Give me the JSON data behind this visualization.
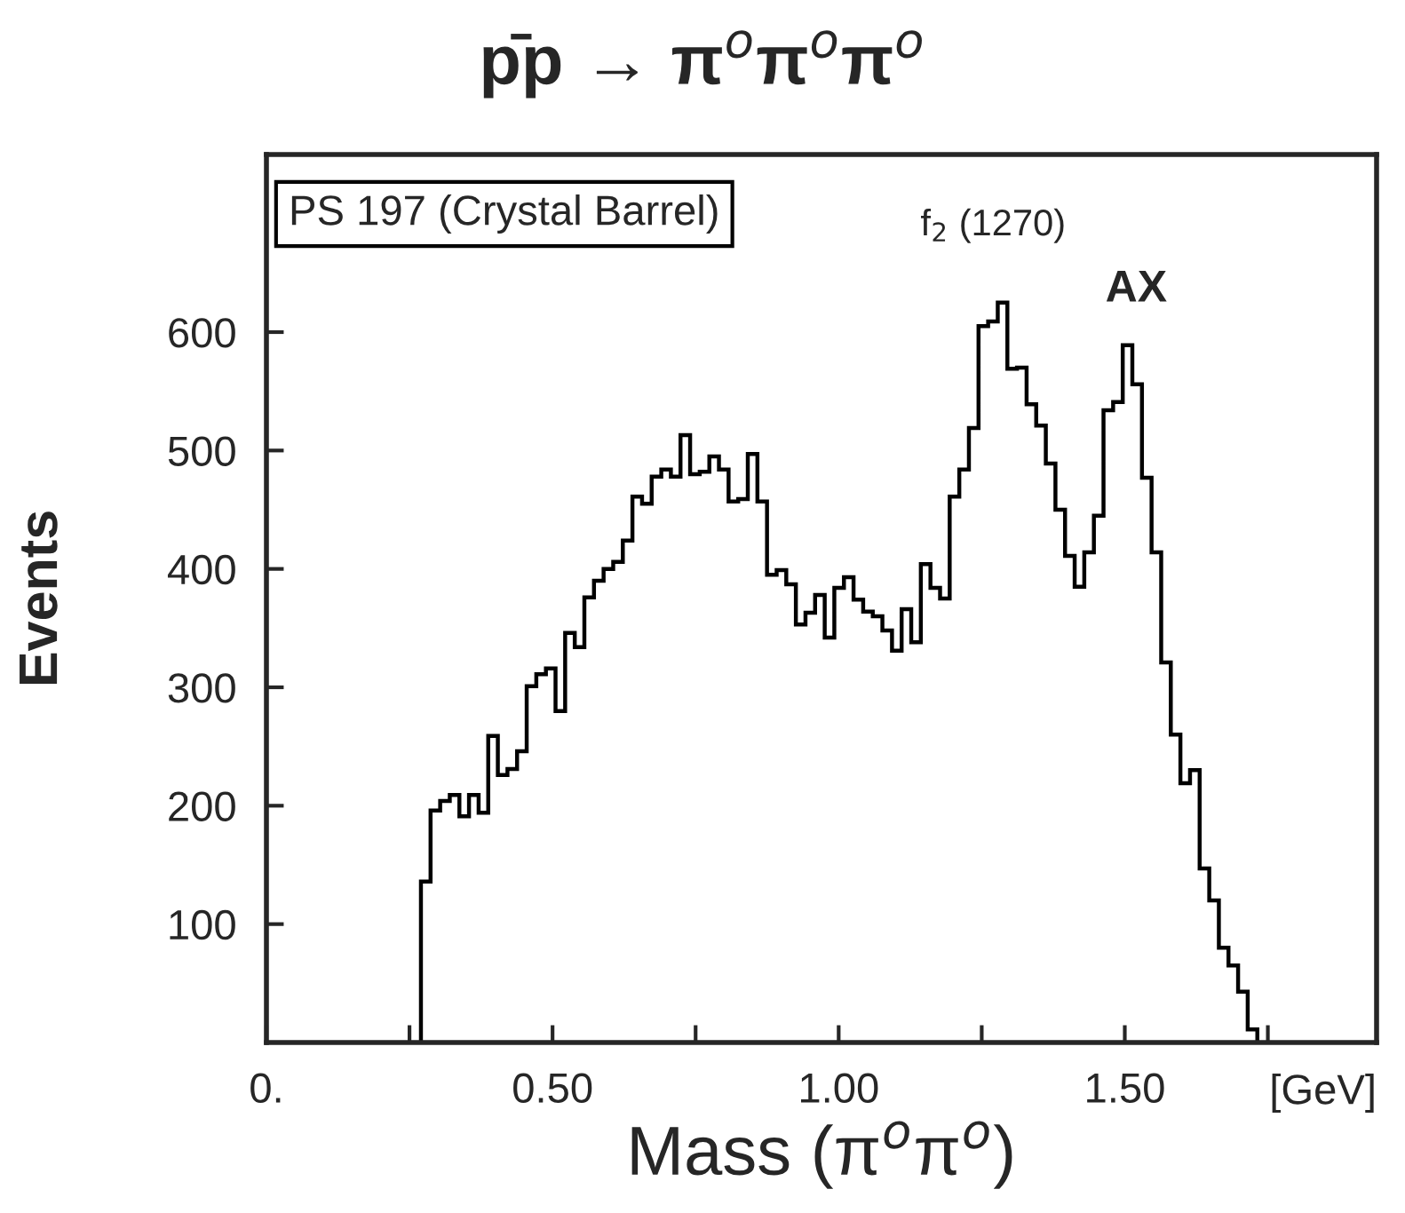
{
  "chart_data": {
    "type": "histogram",
    "title": "p̄p → π$^{o}$π$^{o}$π$^{o}$",
    "xlabel": "Mass (π$^{o}$π$^{o}$)",
    "ylabel": "Events",
    "color": "#000000",
    "bins": [
      0.27,
      0.2868,
      0.3036,
      0.3204,
      0.3372,
      0.354,
      0.3708,
      0.3876,
      0.4044,
      0.4212,
      0.438,
      0.4548,
      0.4716,
      0.4884,
      0.5052,
      0.522,
      0.5388,
      0.5556,
      0.5724,
      0.5892,
      0.606,
      0.6228,
      0.6396,
      0.6564,
      0.6732,
      0.69,
      0.7068,
      0.7236,
      0.7404,
      0.7572,
      0.774,
      0.7908,
      0.8076,
      0.8244,
      0.8412,
      0.858,
      0.8748,
      0.8916,
      0.9084,
      0.9252,
      0.942,
      0.9588,
      0.9756,
      0.9924,
      1.0092,
      1.026,
      1.0428,
      1.0596,
      1.0764,
      1.0932,
      1.11,
      1.1268,
      1.1436,
      1.1604,
      1.1772,
      1.194,
      1.2108,
      1.2276,
      1.2444,
      1.2612,
      1.278,
      1.2948,
      1.3116,
      1.3284,
      1.3452,
      1.362,
      1.3788,
      1.3956,
      1.4124,
      1.4292,
      1.446,
      1.4628,
      1.4796,
      1.4964,
      1.5132,
      1.53,
      1.5468,
      1.5636,
      1.5804,
      1.5972,
      1.614,
      1.6308,
      1.6476,
      1.6644,
      1.6812,
      1.698,
      1.7148,
      1.7316
    ],
    "values": [
      136,
      196,
      204,
      209,
      191,
      209,
      194,
      259,
      226,
      231,
      246,
      301,
      311,
      316,
      280,
      346,
      334,
      376,
      390,
      400,
      406,
      424,
      461,
      455,
      478,
      484,
      478,
      513,
      480,
      482,
      495,
      484,
      457,
      459,
      497,
      457,
      395,
      399,
      387,
      353,
      363,
      378,
      342,
      384,
      393,
      374,
      364,
      360,
      348,
      331,
      366,
      338,
      404,
      384,
      375,
      461,
      484,
      519,
      605,
      609,
      625,
      569,
      570,
      539,
      521,
      489,
      450,
      411,
      385,
      414,
      445,
      534,
      541,
      589,
      556,
      477,
      414,
      321,
      260,
      219,
      230,
      147,
      120,
      80,
      65,
      43,
      11
    ],
    "xlim": [
      0,
      1.94
    ],
    "ylim": [
      0,
      750
    ],
    "xticks": [
      {
        "value": 0,
        "label": "0."
      },
      {
        "value": 0.25,
        "label": null
      },
      {
        "value": 0.5,
        "label": "0.50"
      },
      {
        "value": 0.75,
        "label": null
      },
      {
        "value": 1.0,
        "label": "1.00"
      },
      {
        "value": 1.25,
        "label": null
      },
      {
        "value": 1.5,
        "label": "1.50"
      },
      {
        "value": 1.75,
        "label": null
      }
    ],
    "yticks": [
      100,
      200,
      300,
      400,
      500,
      600
    ],
    "grid": false,
    "legend": false,
    "annotations": [
      "PS 197 (Crystal Barrel)",
      "[GeV]",
      {
        "text": "f$_{2}$ (1270)",
        "x": 1.27,
        "y": 625
      },
      {
        "text": "AX",
        "x": 1.52,
        "y": 589
      }
    ]
  }
}
